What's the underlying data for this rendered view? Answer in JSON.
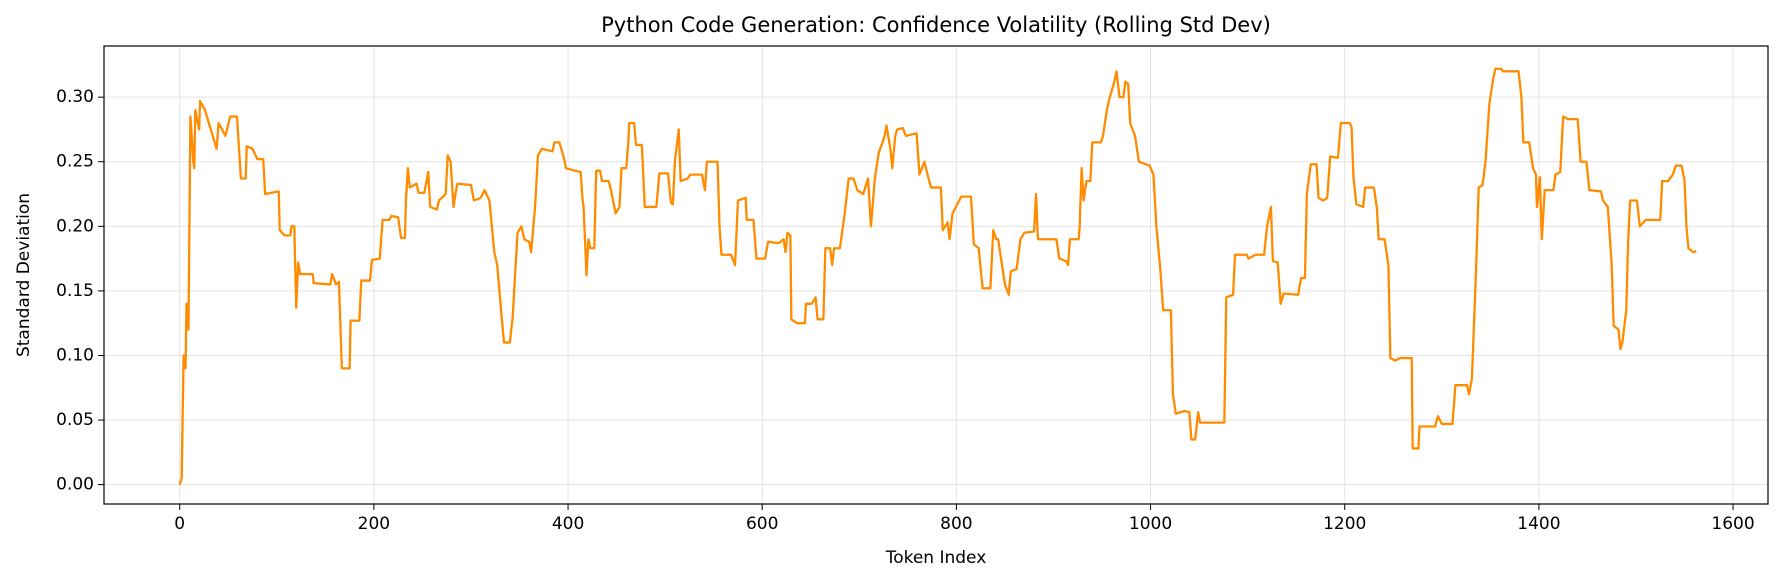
{
  "chart_data": {
    "type": "line",
    "title": "Python Code Generation: Confidence Volatility (Rolling Std Dev)",
    "x_label": "Token Index",
    "y_label": "Standard Deviation",
    "color": "#ff8c00",
    "grid": true,
    "xlim": [
      -78,
      1636
    ],
    "ylim": [
      -0.015,
      0.3396
    ],
    "xticks": [
      0,
      200,
      400,
      600,
      800,
      1000,
      1200,
      1400,
      1600
    ],
    "yticks": [
      {
        "value": 0,
        "label": "0.00"
      },
      0.05,
      {
        "value": 0.1,
        "label": "0.10"
      },
      0.15,
      {
        "value": 0.2,
        "label": "0.20"
      },
      0.25,
      {
        "value": 0.3,
        "label": "0.30"
      }
    ],
    "x": [
      0,
      2,
      4,
      6,
      7,
      9,
      11,
      14,
      15,
      16,
      20,
      21,
      26,
      32,
      38,
      40,
      47,
      52,
      59,
      63,
      68,
      69,
      75,
      80,
      86,
      88,
      102,
      103,
      108,
      114,
      115,
      118,
      120,
      122,
      124,
      137,
      138,
      155,
      157,
      161,
      164,
      167,
      175,
      176,
      185,
      187,
      196,
      198,
      206,
      209,
      216,
      218,
      225,
      228,
      232,
      233,
      235,
      237,
      244,
      246,
      252,
      256,
      258,
      265,
      267,
      274,
      276,
      279,
      282,
      284,
      286,
      300,
      303,
      310,
      314,
      319,
      324,
      327,
      331,
      334,
      340,
      343,
      346,
      348,
      352,
      355,
      360,
      362,
      366,
      369,
      373,
      384,
      386,
      391,
      395,
      398,
      407,
      413,
      415,
      416,
      419,
      421,
      423,
      427,
      429,
      433,
      435,
      442,
      445,
      449,
      453,
      455,
      460,
      462,
      463,
      468,
      470,
      476,
      479,
      491,
      494,
      503,
      506,
      508,
      510,
      514,
      516,
      523,
      526,
      538,
      541,
      543,
      554,
      556,
      558,
      568,
      572,
      575,
      583,
      584,
      591,
      594,
      603,
      606,
      617,
      622,
      624,
      626,
      629,
      630,
      636,
      644,
      645,
      651,
      655,
      657,
      663,
      665,
      670,
      672,
      674,
      680,
      685,
      689,
      694,
      698,
      704,
      709,
      712,
      716,
      720,
      724,
      726,
      728,
      732,
      734,
      737,
      739,
      745,
      748,
      759,
      762,
      767,
      772,
      774,
      784,
      786,
      791,
      793,
      796,
      805,
      815,
      818,
      823,
      827,
      835,
      838,
      841,
      843,
      850,
      854,
      856,
      862,
      866,
      870,
      880,
      882,
      884,
      903,
      906,
      913,
      915,
      917,
      926,
      927,
      929,
      931,
      934,
      938,
      940,
      949,
      951,
      955,
      958,
      962,
      965,
      968,
      972,
      974,
      977,
      979,
      984,
      988,
      999,
      1003,
      1006,
      1010,
      1013,
      1021,
      1023,
      1026,
      1035,
      1040,
      1042,
      1046,
      1049,
      1051,
      1076,
      1078,
      1085,
      1087,
      1099,
      1101,
      1108,
      1117,
      1120,
      1124,
      1126,
      1131,
      1134,
      1137,
      1152,
      1155,
      1159,
      1161,
      1165,
      1171,
      1173,
      1178,
      1182,
      1185,
      1193,
      1196,
      1205,
      1207,
      1209,
      1212,
      1219,
      1221,
      1230,
      1233,
      1235,
      1241,
      1245,
      1247,
      1252,
      1257,
      1269,
      1270,
      1276,
      1277,
      1293,
      1296,
      1300,
      1311,
      1314,
      1326,
      1328,
      1331,
      1335,
      1338,
      1342,
      1345,
      1349,
      1352,
      1355,
      1361,
      1363,
      1379,
      1382,
      1384,
      1390,
      1394,
      1397,
      1398,
      1401,
      1403,
      1406,
      1415,
      1417,
      1422,
      1425,
      1430,
      1440,
      1443,
      1449,
      1452,
      1464,
      1466,
      1471,
      1475,
      1477,
      1482,
      1484,
      1486,
      1490,
      1492,
      1494,
      1501,
      1504,
      1510,
      1525,
      1527,
      1533,
      1538,
      1541,
      1547,
      1550,
      1552,
      1554,
      1559,
      1560,
      1562
    ],
    "values": [
      0.0,
      0.005,
      0.1,
      0.09,
      0.14,
      0.12,
      0.285,
      0.25,
      0.245,
      0.29,
      0.275,
      0.297,
      0.29,
      0.275,
      0.26,
      0.28,
      0.27,
      0.285,
      0.285,
      0.237,
      0.237,
      0.262,
      0.26,
      0.252,
      0.252,
      0.225,
      0.227,
      0.197,
      0.193,
      0.193,
      0.2,
      0.2,
      0.137,
      0.172,
      0.163,
      0.163,
      0.156,
      0.155,
      0.163,
      0.155,
      0.157,
      0.09,
      0.09,
      0.127,
      0.127,
      0.158,
      0.158,
      0.174,
      0.175,
      0.205,
      0.205,
      0.208,
      0.207,
      0.191,
      0.191,
      0.22,
      0.245,
      0.23,
      0.233,
      0.226,
      0.226,
      0.242,
      0.215,
      0.213,
      0.22,
      0.225,
      0.255,
      0.25,
      0.215,
      0.225,
      0.233,
      0.232,
      0.22,
      0.222,
      0.228,
      0.22,
      0.18,
      0.17,
      0.135,
      0.11,
      0.11,
      0.13,
      0.17,
      0.195,
      0.2,
      0.19,
      0.188,
      0.18,
      0.215,
      0.255,
      0.26,
      0.258,
      0.265,
      0.265,
      0.255,
      0.245,
      0.243,
      0.242,
      0.22,
      0.215,
      0.162,
      0.19,
      0.183,
      0.183,
      0.243,
      0.243,
      0.235,
      0.235,
      0.225,
      0.21,
      0.215,
      0.245,
      0.245,
      0.265,
      0.28,
      0.28,
      0.263,
      0.263,
      0.215,
      0.215,
      0.241,
      0.241,
      0.218,
      0.217,
      0.25,
      0.275,
      0.235,
      0.237,
      0.24,
      0.24,
      0.228,
      0.25,
      0.25,
      0.2,
      0.178,
      0.178,
      0.17,
      0.22,
      0.222,
      0.205,
      0.205,
      0.175,
      0.175,
      0.188,
      0.187,
      0.19,
      0.18,
      0.195,
      0.193,
      0.128,
      0.125,
      0.125,
      0.14,
      0.14,
      0.145,
      0.128,
      0.128,
      0.183,
      0.183,
      0.17,
      0.183,
      0.183,
      0.21,
      0.237,
      0.237,
      0.228,
      0.225,
      0.237,
      0.2,
      0.237,
      0.257,
      0.265,
      0.27,
      0.278,
      0.26,
      0.245,
      0.27,
      0.275,
      0.276,
      0.27,
      0.272,
      0.24,
      0.25,
      0.235,
      0.23,
      0.23,
      0.197,
      0.203,
      0.19,
      0.21,
      0.223,
      0.223,
      0.186,
      0.183,
      0.152,
      0.152,
      0.197,
      0.19,
      0.19,
      0.155,
      0.147,
      0.165,
      0.167,
      0.19,
      0.195,
      0.196,
      0.225,
      0.19,
      0.19,
      0.175,
      0.173,
      0.17,
      0.19,
      0.19,
      0.2,
      0.245,
      0.22,
      0.235,
      0.235,
      0.265,
      0.265,
      0.27,
      0.29,
      0.3,
      0.31,
      0.32,
      0.3,
      0.3,
      0.312,
      0.31,
      0.28,
      0.27,
      0.25,
      0.247,
      0.24,
      0.2,
      0.167,
      0.135,
      0.135,
      0.07,
      0.055,
      0.057,
      0.056,
      0.035,
      0.035,
      0.056,
      0.048,
      0.048,
      0.145,
      0.147,
      0.178,
      0.178,
      0.175,
      0.178,
      0.178,
      0.2,
      0.215,
      0.173,
      0.172,
      0.14,
      0.148,
      0.147,
      0.16,
      0.16,
      0.225,
      0.248,
      0.248,
      0.222,
      0.22,
      0.222,
      0.254,
      0.253,
      0.28,
      0.28,
      0.277,
      0.238,
      0.217,
      0.215,
      0.23,
      0.23,
      0.215,
      0.19,
      0.19,
      0.17,
      0.098,
      0.096,
      0.098,
      0.098,
      0.028,
      0.028,
      0.045,
      0.045,
      0.053,
      0.047,
      0.047,
      0.077,
      0.077,
      0.07,
      0.082,
      0.16,
      0.23,
      0.232,
      0.25,
      0.295,
      0.31,
      0.322,
      0.322,
      0.32,
      0.32,
      0.3,
      0.265,
      0.265,
      0.245,
      0.24,
      0.215,
      0.238,
      0.19,
      0.228,
      0.228,
      0.24,
      0.242,
      0.285,
      0.283,
      0.283,
      0.25,
      0.25,
      0.228,
      0.227,
      0.22,
      0.215,
      0.17,
      0.123,
      0.12,
      0.105,
      0.11,
      0.135,
      0.19,
      0.22,
      0.22,
      0.2,
      0.205,
      0.205,
      0.235,
      0.235,
      0.24,
      0.247,
      0.247,
      0.235,
      0.2,
      0.183,
      0.18,
      0.18,
      0.181
    ]
  }
}
